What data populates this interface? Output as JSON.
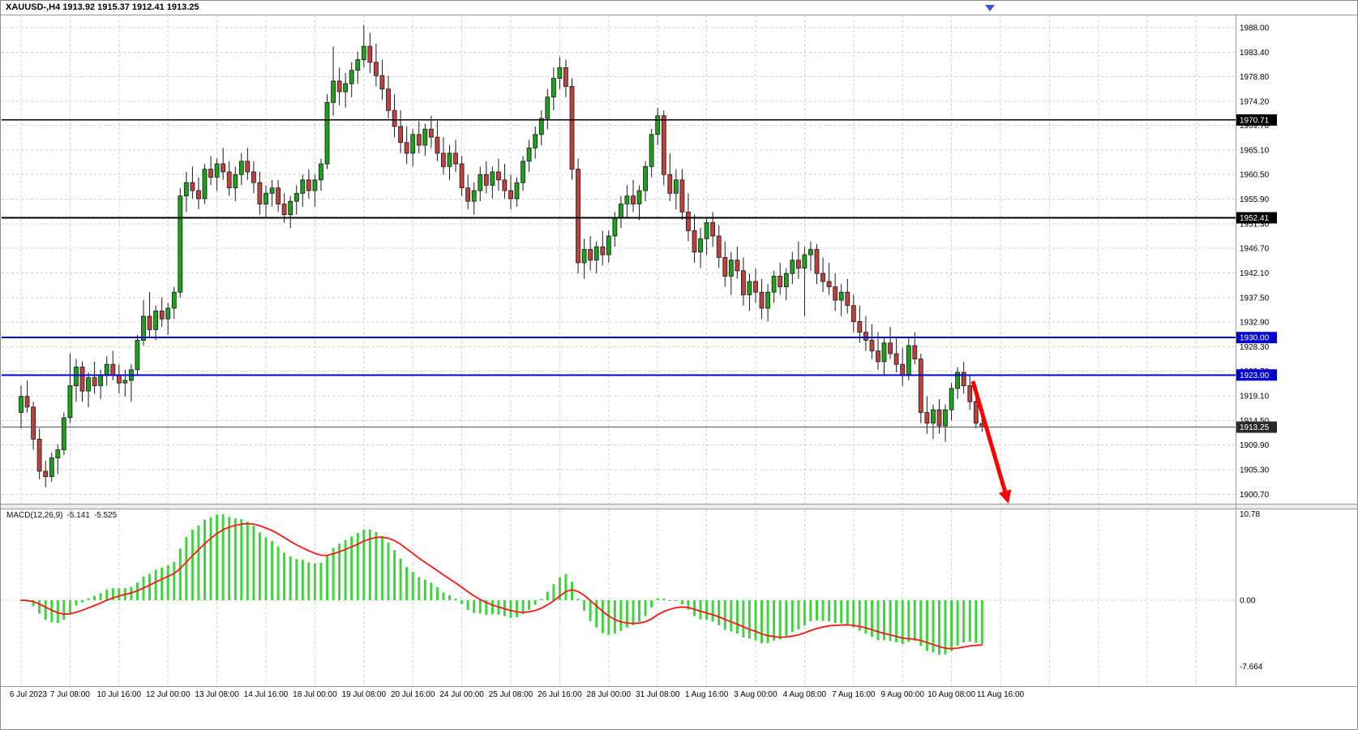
{
  "window": {
    "title": "XAUUSD-,H4 1913.92 1915.37 1912.41 1913.25"
  },
  "indicator": {
    "name": "MACD(12,26,9)",
    "main_value": "-5.141",
    "signal_value": "-5.525"
  },
  "colors": {
    "bull": "#1ba11b",
    "bear": "#c04040",
    "outline": "#1a1a1a",
    "grid": "#cdcdcd",
    "hline_black": "#000000",
    "hline_blue": "#0000d2",
    "macd_hist": "#3ed43e",
    "macd_signal": "#ff1414",
    "arrow": "#ff0000",
    "badge_current": "#2a2a2a",
    "shift_marker": "#3a56c8"
  },
  "hlines": [
    {
      "price": 1970.71,
      "label": "1970.71",
      "type": "black"
    },
    {
      "price": 1952.41,
      "label": "1952.41",
      "type": "black"
    },
    {
      "price": 1930.0,
      "label": "1930.00",
      "type": "blue"
    },
    {
      "price": 1923.0,
      "label": "1923.00",
      "type": "blue"
    }
  ],
  "current_price": {
    "value": 1913.25,
    "label": "1913.25"
  },
  "macd_axis": {
    "top": "10.78",
    "zero": "0.00",
    "bottom": "-7.664"
  },
  "chart_data": {
    "type": "candlestick",
    "symbol": "XAUUSD-",
    "timeframe": "H4",
    "ohlc_last": {
      "open": 1913.92,
      "high": 1915.37,
      "low": 1912.41,
      "close": 1913.25
    },
    "y_ticks": [
      "1988.00",
      "1983.40",
      "1978.80",
      "1974.20",
      "1969.70",
      "1965.10",
      "1960.50",
      "1955.90",
      "1951.30",
      "1946.70",
      "1942.10",
      "1937.50",
      "1932.90",
      "1928.30",
      "1923.70",
      "1919.10",
      "1914.50",
      "1909.90",
      "1905.30",
      "1900.70"
    ],
    "x_labels": [
      "6 Jul 2023",
      "7 Jul 08:00",
      "10 Jul 16:00",
      "12 Jul 00:00",
      "13 Jul 08:00",
      "14 Jul 16:00",
      "18 Jul 00:00",
      "19 Jul 08:00",
      "20 Jul 16:00",
      "24 Jul 00:00",
      "25 Jul 08:00",
      "26 Jul 16:00",
      "28 Jul 00:00",
      "31 Jul 08:00",
      "1 Aug 16:00",
      "3 Aug 00:00",
      "4 Aug 08:00",
      "7 Aug 16:00",
      "9 Aug 00:00",
      "10 Aug 08:00",
      "11 Aug 16:00"
    ],
    "x_label_step_bars": 8,
    "candles_ohlc": [
      [
        1916,
        1921,
        1913,
        1919
      ],
      [
        1919,
        1922,
        1916,
        1917
      ],
      [
        1917,
        1918,
        1909,
        1911
      ],
      [
        1911,
        1913,
        1903.5,
        1905
      ],
      [
        1905,
        1907,
        1902,
        1904
      ],
      [
        1904,
        1908.5,
        1903,
        1907.5
      ],
      [
        1907.5,
        1910,
        1904.5,
        1909
      ],
      [
        1909,
        1916,
        1908,
        1915
      ],
      [
        1915,
        1927,
        1914,
        1921
      ],
      [
        1921,
        1926,
        1918,
        1924.5
      ],
      [
        1924.5,
        1925.5,
        1918,
        1920
      ],
      [
        1920,
        1923.5,
        1917,
        1922.5
      ],
      [
        1922.5,
        1925.5,
        1919.5,
        1921
      ],
      [
        1921,
        1924,
        1918.5,
        1923
      ],
      [
        1923,
        1926.5,
        1921,
        1925
      ],
      [
        1925,
        1927.5,
        1922,
        1923
      ],
      [
        1923,
        1925,
        1919.5,
        1921.5
      ],
      [
        1921.5,
        1924,
        1919,
        1922
      ],
      [
        1922,
        1925,
        1918,
        1924
      ],
      [
        1924,
        1930.5,
        1923,
        1929.5
      ],
      [
        1929.5,
        1937,
        1928.5,
        1934
      ],
      [
        1934,
        1938.5,
        1930,
        1931.5
      ],
      [
        1931.5,
        1936,
        1929.5,
        1935
      ],
      [
        1935,
        1937.5,
        1932,
        1933.5
      ],
      [
        1933.5,
        1936.5,
        1930.5,
        1935.5
      ],
      [
        1935.5,
        1939.5,
        1933.5,
        1938.5
      ],
      [
        1938.5,
        1958,
        1937.5,
        1956.5
      ],
      [
        1956.5,
        1961,
        1953.5,
        1959
      ],
      [
        1959,
        1962,
        1956,
        1957.5
      ],
      [
        1957.5,
        1960,
        1954,
        1956
      ],
      [
        1956,
        1962.5,
        1955,
        1961.5
      ],
      [
        1961.5,
        1964,
        1958.5,
        1960
      ],
      [
        1960,
        1963.5,
        1957.5,
        1962.5
      ],
      [
        1962.5,
        1965.5,
        1959.5,
        1961
      ],
      [
        1961,
        1963,
        1956.5,
        1958
      ],
      [
        1958,
        1962,
        1955.5,
        1960.5
      ],
      [
        1960.5,
        1964.5,
        1958.5,
        1963
      ],
      [
        1963,
        1965.5,
        1959.5,
        1961
      ],
      [
        1961,
        1963,
        1957,
        1959
      ],
      [
        1959,
        1961,
        1953,
        1955
      ],
      [
        1955,
        1958.5,
        1952.5,
        1957
      ],
      [
        1957,
        1959.5,
        1954.5,
        1958
      ],
      [
        1958,
        1959.5,
        1953.5,
        1955
      ],
      [
        1955,
        1957,
        1951.5,
        1953
      ],
      [
        1953,
        1956.5,
        1950.5,
        1955.5
      ],
      [
        1955.5,
        1958.5,
        1953,
        1957
      ],
      [
        1957,
        1960.5,
        1954.5,
        1959.5
      ],
      [
        1959.5,
        1961.5,
        1956,
        1957.5
      ],
      [
        1957.5,
        1960.5,
        1954.5,
        1959.5
      ],
      [
        1959.5,
        1963.5,
        1957.5,
        1962.5
      ],
      [
        1962.5,
        1975.5,
        1961.5,
        1974
      ],
      [
        1974,
        1984.5,
        1971.5,
        1978
      ],
      [
        1978,
        1980.5,
        1973.5,
        1976
      ],
      [
        1976,
        1979.5,
        1973,
        1977.5
      ],
      [
        1977.5,
        1981.5,
        1975,
        1980
      ],
      [
        1980,
        1983.5,
        1977.5,
        1982
      ],
      [
        1982,
        1988.5,
        1980.5,
        1984.5
      ],
      [
        1984.5,
        1987,
        1979.5,
        1981.5
      ],
      [
        1981.5,
        1985,
        1977,
        1979
      ],
      [
        1979,
        1982,
        1974.5,
        1976.5
      ],
      [
        1976.5,
        1979,
        1971,
        1972.5
      ],
      [
        1972.5,
        1975.5,
        1967.5,
        1969.5
      ],
      [
        1969.5,
        1972.5,
        1964.5,
        1966.5
      ],
      [
        1966.5,
        1969.5,
        1962.5,
        1964.5
      ],
      [
        1964.5,
        1969,
        1962,
        1968
      ],
      [
        1968,
        1970.5,
        1964.5,
        1966
      ],
      [
        1966,
        1970,
        1964,
        1969
      ],
      [
        1969,
        1971.5,
        1965.5,
        1967.5
      ],
      [
        1967.5,
        1970.5,
        1963,
        1964.5
      ],
      [
        1964.5,
        1967.5,
        1960.5,
        1962
      ],
      [
        1962,
        1966,
        1959.5,
        1964.5
      ],
      [
        1964.5,
        1967,
        1961,
        1962.5
      ],
      [
        1962.5,
        1964,
        1956.5,
        1958
      ],
      [
        1958,
        1960.5,
        1954,
        1955.5
      ],
      [
        1955.5,
        1959,
        1953,
        1957.5
      ],
      [
        1957.5,
        1962,
        1955.5,
        1960.5
      ],
      [
        1960.5,
        1963,
        1957,
        1958.5
      ],
      [
        1958.5,
        1962,
        1956,
        1961
      ],
      [
        1961,
        1963.5,
        1957.5,
        1959.5
      ],
      [
        1959.5,
        1962.5,
        1956,
        1957.5
      ],
      [
        1957.5,
        1960.5,
        1954,
        1956
      ],
      [
        1956,
        1960,
        1954.5,
        1959
      ],
      [
        1959,
        1964,
        1957.5,
        1963
      ],
      [
        1963,
        1967,
        1961,
        1965.5
      ],
      [
        1965.5,
        1969.5,
        1963.5,
        1968
      ],
      [
        1968,
        1972.5,
        1966,
        1971
      ],
      [
        1971,
        1976.5,
        1969,
        1975
      ],
      [
        1975,
        1980.5,
        1972.5,
        1978.5
      ],
      [
        1978.5,
        1982.5,
        1976.5,
        1980.5
      ],
      [
        1980.5,
        1982,
        1975,
        1977
      ],
      [
        1977,
        1978.5,
        1959.5,
        1961.5
      ],
      [
        1961.5,
        1963.5,
        1942,
        1944
      ],
      [
        1944,
        1948.5,
        1941,
        1946.5
      ],
      [
        1946.5,
        1949,
        1942.5,
        1944.5
      ],
      [
        1944.5,
        1948,
        1942,
        1947
      ],
      [
        1947,
        1950,
        1943.5,
        1945.5
      ],
      [
        1945.5,
        1950,
        1944,
        1949
      ],
      [
        1949,
        1953.5,
        1947,
        1952.5
      ],
      [
        1952.5,
        1956.5,
        1950.5,
        1955
      ],
      [
        1955,
        1958.5,
        1952.5,
        1956.5
      ],
      [
        1956.5,
        1959.5,
        1953.5,
        1955
      ],
      [
        1955,
        1958.5,
        1952,
        1957.5
      ],
      [
        1957.5,
        1963,
        1955.5,
        1962
      ],
      [
        1962,
        1969,
        1960,
        1968
      ],
      [
        1968,
        1973,
        1966,
        1971.5
      ],
      [
        1971.5,
        1972.5,
        1958.5,
        1960.5
      ],
      [
        1960.5,
        1964.5,
        1955.5,
        1957
      ],
      [
        1957,
        1961.5,
        1954,
        1959.5
      ],
      [
        1959.5,
        1961.5,
        1952,
        1953.5
      ],
      [
        1953.5,
        1957,
        1948,
        1950
      ],
      [
        1950,
        1953,
        1944,
        1946
      ],
      [
        1946,
        1950.5,
        1943,
        1948.5
      ],
      [
        1948.5,
        1952.5,
        1945.5,
        1951.5
      ],
      [
        1951.5,
        1953.5,
        1947,
        1949
      ],
      [
        1949,
        1951,
        1943,
        1945
      ],
      [
        1945,
        1948,
        1939.5,
        1941.5
      ],
      [
        1941.5,
        1946,
        1938,
        1944.5
      ],
      [
        1944.5,
        1947,
        1941,
        1942.5
      ],
      [
        1942.5,
        1945,
        1936,
        1938
      ],
      [
        1938,
        1942,
        1935,
        1940.5
      ],
      [
        1940.5,
        1943,
        1936.5,
        1938.5
      ],
      [
        1938.5,
        1941,
        1933.5,
        1935.5
      ],
      [
        1935.5,
        1940,
        1933,
        1938.5
      ],
      [
        1938.5,
        1942.5,
        1936.5,
        1941.5
      ],
      [
        1941.5,
        1944,
        1938,
        1939.5
      ],
      [
        1939.5,
        1943,
        1937,
        1942
      ],
      [
        1942,
        1946,
        1940,
        1944.5
      ],
      [
        1944.5,
        1948,
        1941,
        1943
      ],
      [
        1943,
        1947,
        1934,
        1945.5
      ],
      [
        1945.5,
        1948,
        1942.5,
        1946.5
      ],
      [
        1946.5,
        1947.5,
        1940,
        1942
      ],
      [
        1942,
        1945,
        1938.5,
        1940.5
      ],
      [
        1940.5,
        1944,
        1938,
        1939.5
      ],
      [
        1939.5,
        1942,
        1935,
        1937
      ],
      [
        1937,
        1940,
        1934,
        1938.5
      ],
      [
        1938.5,
        1941,
        1934.5,
        1936
      ],
      [
        1936,
        1938,
        1931,
        1933
      ],
      [
        1933,
        1936,
        1929,
        1931
      ],
      [
        1931,
        1934,
        1927.5,
        1929.5
      ],
      [
        1929.5,
        1932.5,
        1926,
        1927.5
      ],
      [
        1927.5,
        1931,
        1924,
        1925.5
      ],
      [
        1925.5,
        1930,
        1923,
        1929
      ],
      [
        1929,
        1932,
        1926,
        1927
      ],
      [
        1927,
        1930,
        1923.5,
        1925
      ],
      [
        1925,
        1928,
        1921,
        1923
      ],
      [
        1923,
        1930,
        1922,
        1928.5
      ],
      [
        1928.5,
        1931,
        1925,
        1926
      ],
      [
        1926,
        1927,
        1914,
        1916
      ],
      [
        1916,
        1919,
        1912,
        1914
      ],
      [
        1914,
        1917.5,
        1911,
        1916.5
      ],
      [
        1916.5,
        1918.5,
        1912,
        1913.5
      ],
      [
        1913.5,
        1917.5,
        1910.5,
        1916.5
      ],
      [
        1916.5,
        1921.5,
        1914.5,
        1920.5
      ],
      [
        1920.5,
        1924.5,
        1918.5,
        1923.5
      ],
      [
        1923.5,
        1925.5,
        1919.5,
        1921
      ],
      [
        1921,
        1923,
        1916.5,
        1918
      ],
      [
        1918,
        1919.5,
        1913,
        1914
      ],
      [
        1913.92,
        1915.37,
        1912.41,
        1913.25
      ]
    ],
    "indicator": {
      "type": "MACD",
      "params": [
        12,
        26,
        9
      ],
      "last_main": -5.141,
      "last_signal": -5.525,
      "scale_top": 10.78,
      "scale_bottom": -7.664,
      "histogram_color": "green",
      "signal_color": "red"
    },
    "annotations": {
      "trend_arrow": {
        "direction": "down-right",
        "color": "#ff0000",
        "near_bar": 157
      }
    }
  }
}
